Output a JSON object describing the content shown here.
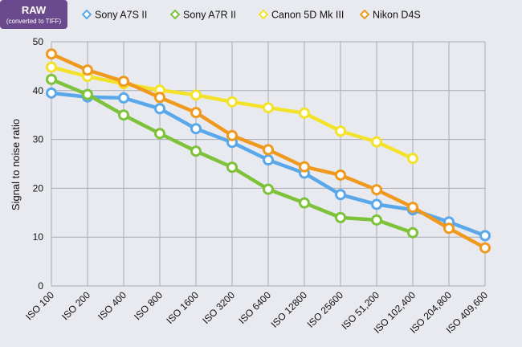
{
  "badge": {
    "title": "RAW",
    "subtitle": "(converted to TIFF)",
    "color": "#6a4a8c"
  },
  "chart_data": {
    "type": "line",
    "title": "",
    "xlabel": "",
    "ylabel": "Signal to noise ratio",
    "ylim": [
      0,
      50
    ],
    "yticks": [
      0,
      10,
      20,
      30,
      40,
      50
    ],
    "grid": true,
    "legend_position": "top",
    "categories": [
      "ISO 100",
      "ISO 200",
      "ISO 400",
      "ISO 800",
      "ISO 1600",
      "ISO 3200",
      "ISO 6400",
      "ISO 12800",
      "ISO 25600",
      "ISO 51,200",
      "ISO 102,400",
      "ISO 204,800",
      "ISO 409,600"
    ],
    "series": [
      {
        "name": "Sony A7S II",
        "color": "#5aa8ea",
        "values": [
          39.5,
          38.7,
          38.5,
          36.3,
          32.2,
          29.4,
          25.8,
          23.1,
          18.7,
          16.7,
          15.6,
          13.1,
          10.3
        ]
      },
      {
        "name": "Sony A7R II",
        "color": "#7ec23a",
        "values": [
          42.3,
          39.2,
          35.0,
          31.2,
          27.6,
          24.3,
          19.8,
          17.0,
          14.0,
          13.5,
          10.9,
          null,
          null
        ]
      },
      {
        "name": "Canon 5D Mk III",
        "color": "#f4e22a",
        "values": [
          44.8,
          42.9,
          41.4,
          40.1,
          39.1,
          37.7,
          36.5,
          35.4,
          31.7,
          29.5,
          26.1,
          null,
          null
        ]
      },
      {
        "name": "Nikon D4S",
        "color": "#ef9a1f",
        "values": [
          47.5,
          44.2,
          41.9,
          38.6,
          35.5,
          30.8,
          27.9,
          24.4,
          22.7,
          19.7,
          16.1,
          11.8,
          7.8
        ]
      }
    ]
  }
}
